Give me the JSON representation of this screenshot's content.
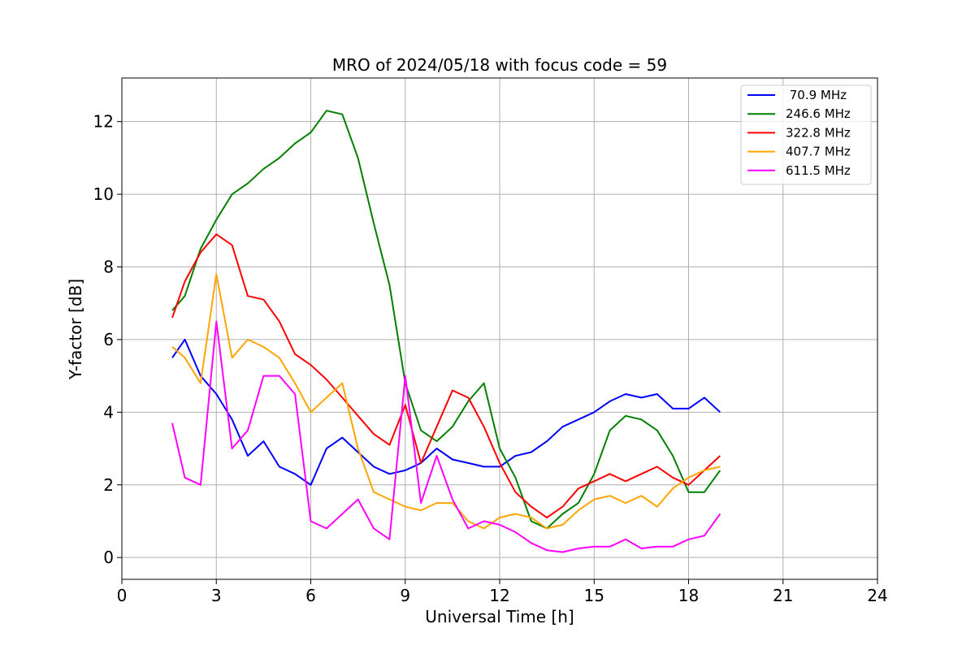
{
  "chart_data": {
    "type": "line",
    "title": "MRO of 2024/05/18 with focus code = 59",
    "xlabel": "Universal Time [h]",
    "ylabel": "Y-factor [dB]",
    "xlim": [
      0,
      24
    ],
    "ylim": [
      -0.6,
      13.2
    ],
    "xticks": [
      0,
      3,
      6,
      9,
      12,
      15,
      18,
      21,
      24
    ],
    "yticks": [
      0,
      2,
      4,
      6,
      8,
      10,
      12
    ],
    "grid": true,
    "legend_position": "top-right",
    "series": [
      {
        "name": " 70.9 MHz",
        "color": "#0000ff",
        "x": [
          1.6,
          2.0,
          2.5,
          3.0,
          3.5,
          4.0,
          4.5,
          5.0,
          5.5,
          6.0,
          6.5,
          7.0,
          7.5,
          8.0,
          8.5,
          9.0,
          9.5,
          10.0,
          10.5,
          11.0,
          11.5,
          12.0,
          12.5,
          13.0,
          13.5,
          14.0,
          14.5,
          15.0,
          15.5,
          16.0,
          16.5,
          17.0,
          17.5,
          18.0,
          18.5,
          19.0
        ],
        "y": [
          5.5,
          6.0,
          5.0,
          4.5,
          3.8,
          2.8,
          3.2,
          2.5,
          2.3,
          2.0,
          3.0,
          3.3,
          2.9,
          2.5,
          2.3,
          2.4,
          2.6,
          3.0,
          2.7,
          2.6,
          2.5,
          2.5,
          2.8,
          2.9,
          3.2,
          3.6,
          3.8,
          4.0,
          4.3,
          4.5,
          4.4,
          4.5,
          4.1,
          4.1,
          4.4,
          4.0
        ]
      },
      {
        "name": "246.6 MHz",
        "color": "#008000",
        "x": [
          1.6,
          2.0,
          2.5,
          3.0,
          3.5,
          4.0,
          4.5,
          5.0,
          5.5,
          6.0,
          6.5,
          7.0,
          7.5,
          8.0,
          8.5,
          9.0,
          9.5,
          10.0,
          10.5,
          11.0,
          11.5,
          12.0,
          12.5,
          13.0,
          13.5,
          14.0,
          14.5,
          15.0,
          15.5,
          16.0,
          16.5,
          17.0,
          17.5,
          18.0,
          18.5,
          19.0
        ],
        "y": [
          6.8,
          7.2,
          8.5,
          9.3,
          10.0,
          10.3,
          10.7,
          11.0,
          11.4,
          11.7,
          12.3,
          12.2,
          11.0,
          9.2,
          7.5,
          4.8,
          3.5,
          3.2,
          3.6,
          4.3,
          4.8,
          3.0,
          2.2,
          1.0,
          0.8,
          1.2,
          1.5,
          2.3,
          3.5,
          3.9,
          3.8,
          3.5,
          2.8,
          1.8,
          1.8,
          2.4
        ]
      },
      {
        "name": "322.8 MHz",
        "color": "#ff0000",
        "x": [
          1.6,
          2.0,
          2.5,
          3.0,
          3.5,
          4.0,
          4.5,
          5.0,
          5.5,
          6.0,
          6.5,
          7.0,
          7.5,
          8.0,
          8.5,
          9.0,
          9.5,
          10.0,
          10.5,
          11.0,
          11.5,
          12.0,
          12.5,
          13.0,
          13.5,
          14.0,
          14.5,
          15.0,
          15.5,
          16.0,
          16.5,
          17.0,
          17.5,
          18.0,
          18.5,
          19.0
        ],
        "y": [
          6.6,
          7.6,
          8.4,
          8.9,
          8.6,
          7.2,
          7.1,
          6.5,
          5.6,
          5.3,
          4.9,
          4.4,
          3.9,
          3.4,
          3.1,
          4.2,
          2.6,
          3.6,
          4.6,
          4.4,
          3.6,
          2.6,
          1.8,
          1.4,
          1.1,
          1.4,
          1.9,
          2.1,
          2.3,
          2.1,
          2.3,
          2.5,
          2.2,
          2.0,
          2.4,
          2.8
        ]
      },
      {
        "name": "407.7 MHz",
        "color": "#ffa500",
        "x": [
          1.6,
          2.0,
          2.5,
          3.0,
          3.5,
          4.0,
          4.5,
          5.0,
          5.5,
          6.0,
          6.5,
          7.0,
          7.5,
          8.0,
          8.5,
          9.0,
          9.5,
          10.0,
          10.5,
          11.0,
          11.5,
          12.0,
          12.5,
          13.0,
          13.5,
          14.0,
          14.5,
          15.0,
          15.5,
          16.0,
          16.5,
          17.0,
          17.5,
          18.0,
          18.5,
          19.0
        ],
        "y": [
          5.8,
          5.5,
          4.8,
          7.8,
          5.5,
          6.0,
          5.8,
          5.5,
          4.8,
          4.0,
          4.4,
          4.8,
          3.0,
          1.8,
          1.6,
          1.4,
          1.3,
          1.5,
          1.5,
          1.0,
          0.8,
          1.1,
          1.2,
          1.1,
          0.8,
          0.9,
          1.3,
          1.6,
          1.7,
          1.5,
          1.7,
          1.4,
          1.9,
          2.2,
          2.4,
          2.5
        ]
      },
      {
        "name": "611.5 MHz",
        "color": "#ff00ff",
        "x": [
          1.6,
          2.0,
          2.5,
          3.0,
          3.5,
          4.0,
          4.5,
          5.0,
          5.5,
          6.0,
          6.5,
          7.0,
          7.5,
          8.0,
          8.5,
          9.0,
          9.5,
          10.0,
          10.5,
          11.0,
          11.5,
          12.0,
          12.5,
          13.0,
          13.5,
          14.0,
          14.5,
          15.0,
          15.5,
          16.0,
          16.5,
          17.0,
          17.5,
          18.0,
          18.5,
          19.0
        ],
        "y": [
          3.7,
          2.2,
          2.0,
          6.5,
          3.0,
          3.5,
          5.0,
          5.0,
          4.5,
          1.0,
          0.8,
          1.2,
          1.6,
          0.8,
          0.5,
          5.0,
          1.5,
          2.8,
          1.6,
          0.8,
          1.0,
          0.9,
          0.7,
          0.4,
          0.2,
          0.15,
          0.25,
          0.3,
          0.3,
          0.5,
          0.25,
          0.3,
          0.3,
          0.5,
          0.6,
          1.2
        ]
      }
    ]
  }
}
